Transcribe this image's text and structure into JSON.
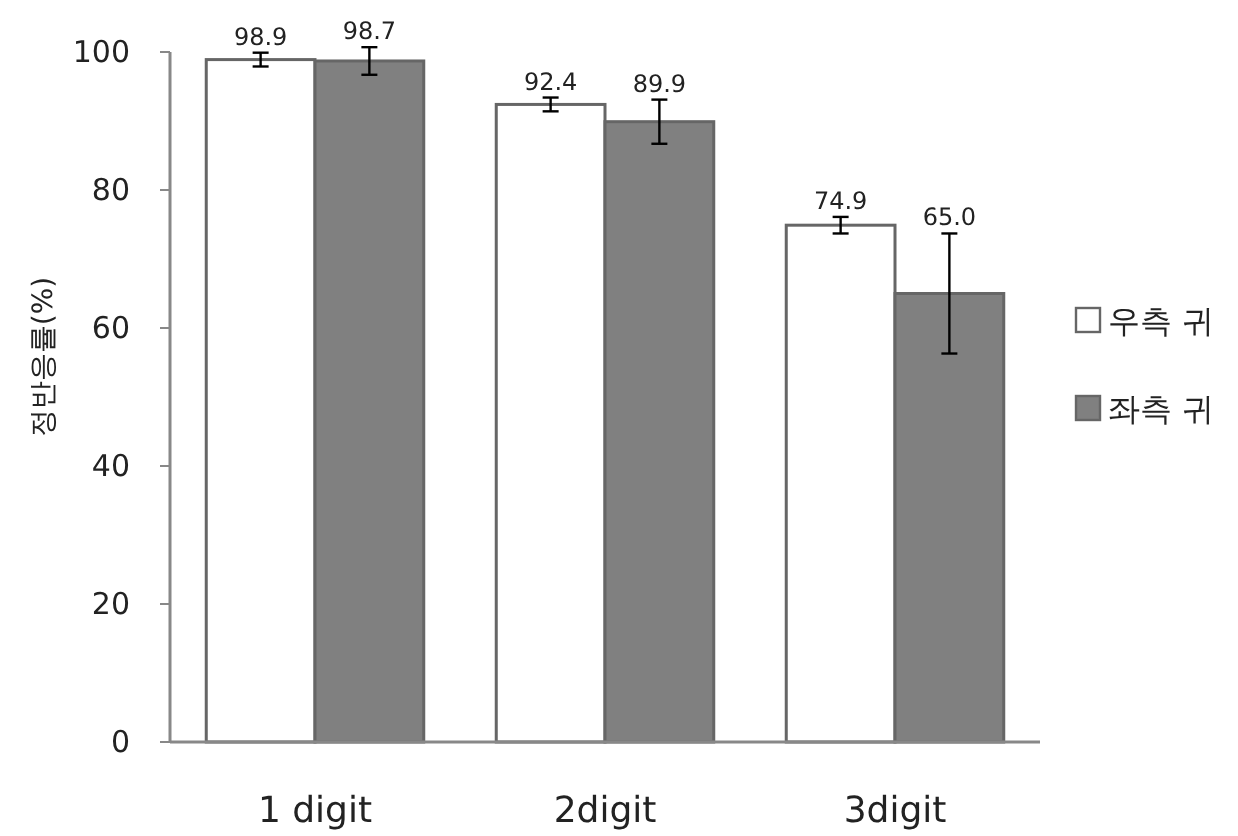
{
  "chart_data": {
    "type": "bar",
    "ylabel": "정반응률(%)",
    "categories": [
      "1 digit",
      "2digit",
      "3digit"
    ],
    "series": [
      {
        "name": "우측 귀",
        "color": "#ffffff",
        "values": [
          98.9,
          92.4,
          74.9
        ],
        "errors": [
          1,
          1,
          1.2
        ]
      },
      {
        "name": "좌측 귀",
        "color": "#808080",
        "values": [
          98.7,
          89.9,
          65.0
        ],
        "errors": [
          2,
          3.2,
          8.7
        ]
      }
    ],
    "value_labels": [
      [
        "98.9",
        "92.4",
        "74.9"
      ],
      [
        "98.7",
        "89.9",
        "65.0"
      ]
    ],
    "ylim": [
      0,
      100
    ],
    "yticks": [
      0,
      20,
      40,
      60,
      80,
      100
    ],
    "grid": false,
    "legend": "right"
  }
}
